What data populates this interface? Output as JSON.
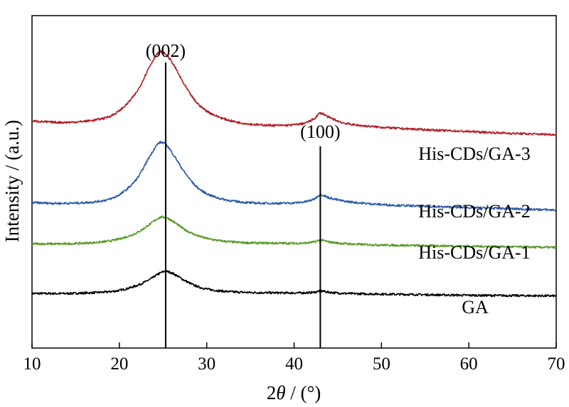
{
  "chart_data": {
    "type": "line",
    "title": "",
    "xlabel_prefix": "2",
    "xlabel_theta": "θ",
    "xlabel_suffix": " / (°)",
    "ylabel": "Intensity / (a.u.)",
    "xlim": [
      10,
      70
    ],
    "xticks": [
      10,
      20,
      30,
      40,
      50,
      60,
      70
    ],
    "yticks_shown": false,
    "legend": "none",
    "grid": false,
    "peak_markers": [
      {
        "label": "(002)",
        "x": 25.3
      },
      {
        "label": "(100)",
        "x": 43.0
      }
    ],
    "series": [
      {
        "name": "GA",
        "color": "#000000",
        "x": [
          10,
          14,
          18,
          20,
          22,
          23.5,
          24.5,
          25.3,
          26.2,
          27.5,
          29,
          31,
          34,
          38,
          41,
          42.3,
          43,
          44,
          46,
          50,
          55,
          60,
          65,
          70
        ],
        "y": [
          0.09,
          0.09,
          0.11,
          0.14,
          0.22,
          0.32,
          0.41,
          0.45,
          0.41,
          0.3,
          0.2,
          0.14,
          0.11,
          0.1,
          0.1,
          0.11,
          0.13,
          0.11,
          0.09,
          0.08,
          0.07,
          0.06,
          0.055,
          0.05
        ]
      },
      {
        "name": "His-CDs/GA-1",
        "color": "#5a9a2a",
        "x": [
          10,
          14,
          18,
          20,
          22,
          23.5,
          24.5,
          25.3,
          26.2,
          27.5,
          29,
          31,
          34,
          38,
          41,
          42.3,
          43,
          44,
          46,
          50,
          55,
          60,
          65,
          70
        ],
        "y": [
          0.9,
          0.9,
          0.93,
          0.98,
          1.08,
          1.22,
          1.32,
          1.33,
          1.26,
          1.13,
          1.03,
          0.96,
          0.92,
          0.91,
          0.91,
          0.93,
          0.96,
          0.93,
          0.9,
          0.88,
          0.87,
          0.86,
          0.85,
          0.84
        ]
      },
      {
        "name": "His-CDs/GA-2",
        "color": "#2e5caa",
        "x": [
          10,
          14,
          18,
          20,
          22,
          23.5,
          24.5,
          25.3,
          26.2,
          27.5,
          29,
          31,
          34,
          38,
          41,
          42.3,
          43,
          44,
          46,
          50,
          55,
          60,
          65,
          70
        ],
        "y": [
          1.57,
          1.56,
          1.6,
          1.7,
          1.96,
          2.33,
          2.54,
          2.52,
          2.35,
          2.06,
          1.81,
          1.66,
          1.58,
          1.56,
          1.58,
          1.63,
          1.7,
          1.65,
          1.59,
          1.54,
          1.51,
          1.49,
          1.47,
          1.45
        ]
      },
      {
        "name": "His-CDs/GA-3",
        "color": "#b0202a",
        "x": [
          10,
          14,
          18,
          20,
          22,
          23.5,
          24.5,
          25.3,
          26.2,
          27.5,
          29,
          31,
          34,
          38,
          41,
          42.3,
          43,
          44,
          46,
          50,
          55,
          60,
          65,
          70
        ],
        "y": [
          2.9,
          2.88,
          2.94,
          3.07,
          3.38,
          3.8,
          4.02,
          3.99,
          3.82,
          3.48,
          3.18,
          2.99,
          2.87,
          2.83,
          2.86,
          2.94,
          3.03,
          2.96,
          2.86,
          2.8,
          2.76,
          2.73,
          2.7,
          2.68
        ]
      }
    ]
  }
}
